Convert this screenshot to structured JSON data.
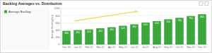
{
  "chart_data": {
    "type": "bar",
    "title": "Backlog Averages vs. Distribution",
    "y_label": "Average Backlog (hrs)",
    "categories": [
      "Dec 20",
      "Jan 21",
      "Feb 21",
      "Mar 21",
      "Apr 21",
      "May 21",
      "Jun 21",
      "Jul 21",
      "Aug 21",
      "Sep 21",
      "Oct 21",
      "Nov 21",
      "Dec 21"
    ],
    "series": [
      {
        "name": "Average Backlog",
        "color": "#3aa83a",
        "values": [
          380,
          400,
          420,
          450,
          480,
          520,
          560,
          610,
          650,
          700,
          740,
          790,
          840
        ]
      }
    ],
    "ylim": [
      0,
      1000
    ],
    "yticks": [
      0,
      200,
      400,
      600,
      800,
      1000
    ],
    "grid": true,
    "legend": "left",
    "data_labels": true
  }
}
